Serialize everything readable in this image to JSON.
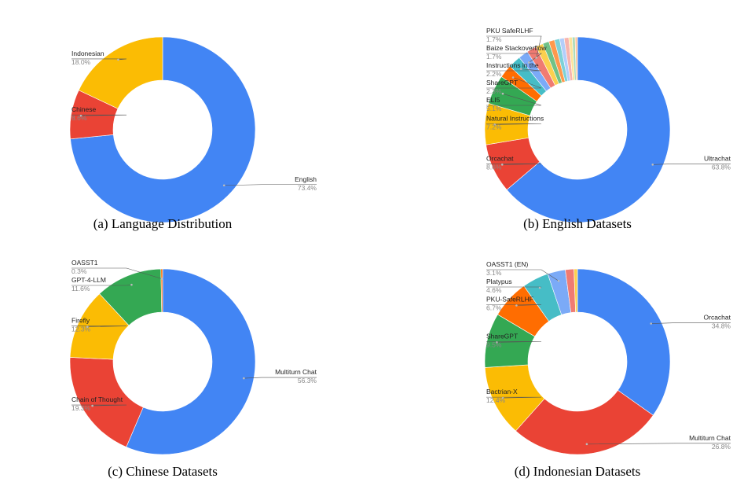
{
  "chart_data": [
    {
      "type": "pie",
      "caption": "(a) Language Distribution",
      "categories": [
        "English",
        "Chinese",
        "Indonesian"
      ],
      "values": [
        73.4,
        8.6,
        18.0
      ],
      "value_labels": [
        "73.4%",
        "8.6%",
        "18.0%"
      ],
      "colors": [
        "#4285f4",
        "#ea4335",
        "#fbbc04"
      ]
    },
    {
      "type": "pie",
      "caption": "(b) English Datasets",
      "categories": [
        "Ultrachat",
        "Orcachat",
        "Natural Instructions",
        "ELI5",
        "ShareGPT",
        "Instructions in the",
        "Baize Stackoverflow",
        "PKU SafeRLHF",
        null,
        null,
        null,
        null,
        null,
        null,
        null,
        null,
        null
      ],
      "values": [
        63.8,
        8.6,
        7.2,
        5.1,
        2.3,
        2.2,
        1.7,
        1.7,
        1.3,
        1.1,
        1.0,
        0.9,
        0.8,
        0.8,
        0.6,
        0.5,
        0.4
      ],
      "value_labels": [
        "63.8%",
        "8.6%",
        "7.2%",
        "5.1%",
        "2.3%",
        "2.2%",
        "1.7%",
        "1.7%",
        null,
        null,
        null,
        null,
        null,
        null,
        null,
        null,
        null
      ],
      "colors": [
        "#4285f4",
        "#ea4335",
        "#fbbc04",
        "#34a853",
        "#ff6d01",
        "#46bdc6",
        "#7baaf7",
        "#f07b72",
        "#fcd04f",
        "#71c287",
        "#ff994d",
        "#7ed1d7",
        "#b3cefb",
        "#f7b4ae",
        "#fde49b",
        "#aedcba",
        "#ffc599"
      ]
    },
    {
      "type": "pie",
      "caption": "(c) Chinese Datasets",
      "categories": [
        "Multiturn Chat",
        "Chain of Thought",
        "Firefly",
        "GPT-4-LLM",
        "OASST1"
      ],
      "values": [
        56.3,
        19.3,
        12.3,
        11.6,
        0.3
      ],
      "value_labels": [
        "56.3%",
        "19.3%",
        "12.3%",
        "11.6%",
        "0.3%"
      ],
      "colors": [
        "#4285f4",
        "#ea4335",
        "#fbbc04",
        "#34a853",
        "#ff6d01"
      ]
    },
    {
      "type": "pie",
      "caption": "(d) Indonesian Datasets",
      "categories": [
        "Orcachat",
        "Multiturn Chat",
        "Bactrian-X",
        "ShareGPT",
        "PKU-SafeRLHF",
        "Platypus",
        "OASST1 (EN)",
        null,
        null
      ],
      "values": [
        34.8,
        26.8,
        12.4,
        9.5,
        6.7,
        4.6,
        3.1,
        1.5,
        0.6
      ],
      "value_labels": [
        "34.8%",
        "26.8%",
        "12.4%",
        "9.5%",
        "6.7%",
        "4.6%",
        "3.1%",
        null,
        null
      ],
      "colors": [
        "#4285f4",
        "#ea4335",
        "#fbbc04",
        "#34a853",
        "#ff6d01",
        "#46bdc6",
        "#7baaf7",
        "#f07b72",
        "#fcd04f"
      ]
    }
  ]
}
